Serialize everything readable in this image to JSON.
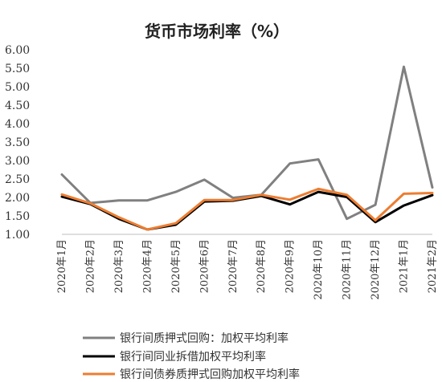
{
  "chart_data": {
    "type": "line",
    "title": "货币市场利率（%）",
    "categories": [
      "2020年1月",
      "2020年2月",
      "2020年3月",
      "2020年4月",
      "2020年5月",
      "2020年6月",
      "2020年7月",
      "2020年8月",
      "2020年9月",
      "2020年10月",
      "2020年11月",
      "2020年12月",
      "2021年1月",
      "2021年2月"
    ],
    "ylim": [
      1.0,
      6.0
    ],
    "yticks": [
      "1.00",
      "1.50",
      "2.00",
      "2.50",
      "3.00",
      "3.50",
      "4.00",
      "4.50",
      "5.00",
      "5.50",
      "6.00"
    ],
    "legend_position": "bottom",
    "grid": false,
    "series": [
      {
        "name": "银行间质押式回购：加权平均利率",
        "color": "#808080",
        "values": [
          2.62,
          1.85,
          1.92,
          1.92,
          2.15,
          2.48,
          1.99,
          2.07,
          2.92,
          3.03,
          1.42,
          1.8,
          5.54,
          2.27
        ]
      },
      {
        "name": "银行间同业拆借加权平均利率",
        "color": "#000000",
        "values": [
          2.02,
          1.82,
          1.42,
          1.13,
          1.26,
          1.89,
          1.91,
          2.04,
          1.81,
          2.15,
          2.01,
          1.33,
          1.78,
          2.06
        ]
      },
      {
        "name": "银行间债券质押式回购加权平均利率",
        "color": "#ed7d31",
        "values": [
          2.08,
          1.84,
          1.46,
          1.13,
          1.3,
          1.93,
          1.93,
          2.07,
          1.94,
          2.23,
          2.07,
          1.38,
          2.1,
          2.12
        ]
      }
    ]
  }
}
